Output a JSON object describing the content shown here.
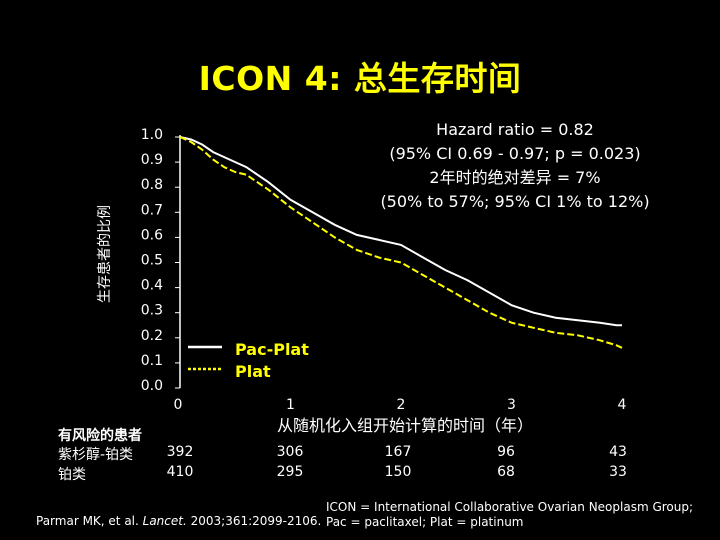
{
  "title": "ICON 4: 总生存时间",
  "hazard_box": {
    "line1": "Hazard ratio = 0.82",
    "line2": "(95% CI 0.69 - 0.97; p = 0.023)",
    "line3": "2年时的绝对差异 = 7%",
    "line4": "(50% to 57%; 95% CI 1% to 12%)"
  },
  "risk_table": {
    "title": "有风险的患者",
    "rows": [
      {
        "label": "紫杉醇-铂类",
        "values": [
          "392",
          "306",
          "167",
          "96",
          "43"
        ]
      },
      {
        "label": "铂类",
        "values": [
          "410",
          "295",
          "150",
          "68",
          "33"
        ]
      }
    ]
  },
  "citation": {
    "prefix": "Parmar MK, et al. ",
    "journal": "Lancet.",
    "suffix": " 2003;361:2099-2106."
  },
  "footnote": {
    "line1": "ICON = International Collaborative Ovarian Neoplasm Group;",
    "line2": "Pac = paclitaxel; Plat = platinum"
  },
  "colors": {
    "background": "#000000",
    "title": "#ffff00",
    "pac_plat": "#ffffff",
    "plat": "#ffff00"
  },
  "chart_data": {
    "type": "line",
    "title": "ICON 4: 总生存时间",
    "xlabel": "从随机化入组开始计算的时间（年）",
    "ylabel": "生存患者的比例",
    "xlim": [
      0,
      4
    ],
    "ylim": [
      0,
      1
    ],
    "x_ticks": [
      "0",
      "1",
      "2",
      "3",
      "4"
    ],
    "y_ticks": [
      "0.0",
      "0.1",
      "0.2",
      "0.3",
      "0.4",
      "0.5",
      "0.6",
      "0.7",
      "0.8",
      "0.9",
      "1.0"
    ],
    "legend_position": "bottom-left",
    "series": [
      {
        "name": "Pac-Plat",
        "color": "#ffffff",
        "style": "solid",
        "x": [
          0,
          0.1,
          0.2,
          0.3,
          0.4,
          0.5,
          0.6,
          0.8,
          1.0,
          1.2,
          1.4,
          1.6,
          1.8,
          2.0,
          2.2,
          2.4,
          2.6,
          2.8,
          3.0,
          3.2,
          3.4,
          3.6,
          3.8,
          3.95,
          4.0
        ],
        "y": [
          1.0,
          0.99,
          0.97,
          0.94,
          0.92,
          0.9,
          0.88,
          0.82,
          0.75,
          0.7,
          0.65,
          0.61,
          0.59,
          0.57,
          0.52,
          0.47,
          0.43,
          0.38,
          0.33,
          0.3,
          0.28,
          0.27,
          0.26,
          0.25,
          0.25
        ]
      },
      {
        "name": "Plat",
        "color": "#ffff00",
        "style": "dashed",
        "x": [
          0,
          0.1,
          0.2,
          0.3,
          0.4,
          0.5,
          0.6,
          0.8,
          1.0,
          1.2,
          1.4,
          1.6,
          1.8,
          2.0,
          2.2,
          2.4,
          2.6,
          2.8,
          3.0,
          3.2,
          3.4,
          3.6,
          3.8,
          3.95,
          4.0
        ],
        "y": [
          1.0,
          0.98,
          0.95,
          0.91,
          0.88,
          0.86,
          0.85,
          0.79,
          0.72,
          0.66,
          0.6,
          0.55,
          0.52,
          0.5,
          0.45,
          0.4,
          0.35,
          0.3,
          0.26,
          0.24,
          0.22,
          0.21,
          0.19,
          0.17,
          0.16
        ]
      }
    ]
  }
}
